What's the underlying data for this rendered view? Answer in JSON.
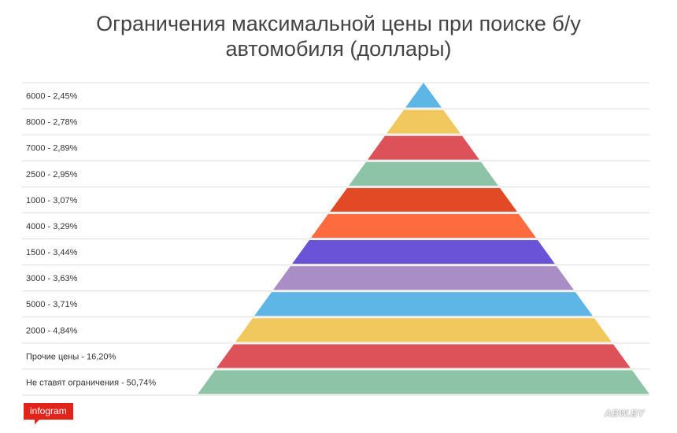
{
  "title_line1": "Ограничения максимальной цены при поиске б/у",
  "title_line2": "автомобиля (доллары)",
  "logo_text": "infogram",
  "watermark_text": "ABW.BY",
  "chart_data": {
    "type": "pyramid",
    "title": "Ограничения максимальной цены при поиске б/у автомобиля (доллары)",
    "categories": [
      "6000 - 2,45%",
      "8000 - 2,78%",
      "7000 - 2,89%",
      "2500 - 2,95%",
      "1000 - 3,07%",
      "4000 - 3,29%",
      "1500 - 3,44%",
      "3000 - 3,63%",
      "5000 - 3,71%",
      "2000 - 4,84%",
      "Прочие цены - 16,20%",
      "Не ставят ограничения - 50,74%"
    ],
    "values": [
      2.45,
      2.78,
      2.89,
      2.95,
      3.07,
      3.29,
      3.44,
      3.63,
      3.71,
      4.84,
      16.2,
      50.74
    ],
    "colors": [
      "#5eb6e6",
      "#f0c85e",
      "#dd5158",
      "#8dc4a8",
      "#e24a26",
      "#fe6b3e",
      "#6b53d8",
      "#a98ec6",
      "#5eb6e6",
      "#f0c85e",
      "#dd5158",
      "#8dc4a8"
    ],
    "legend": "left"
  }
}
